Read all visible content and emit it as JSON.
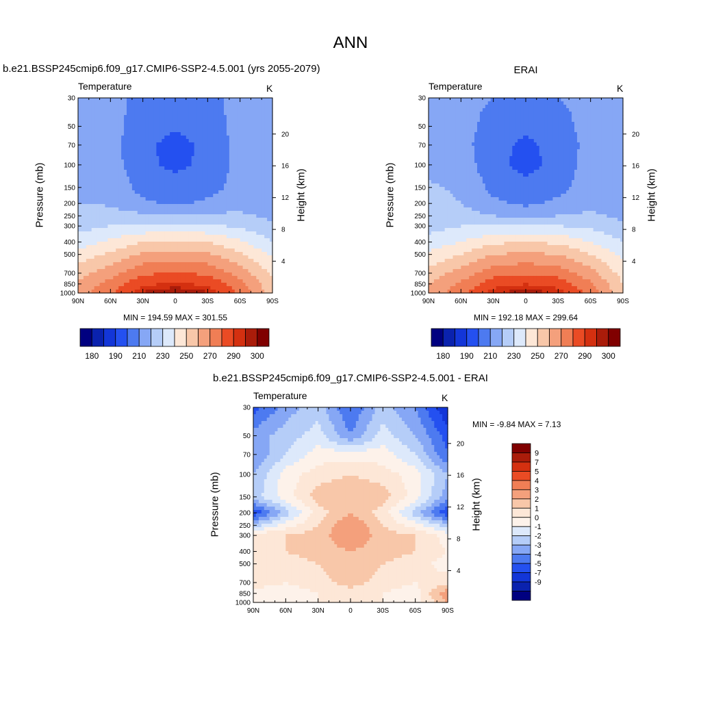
{
  "figure_title": "ANN",
  "colors": {
    "seq": [
      "#000080",
      "#0a22ae",
      "#1336d8",
      "#2450f0",
      "#4d7af0",
      "#86a7f5",
      "#b5cdf8",
      "#dde9fb",
      "#fde7d7",
      "#f8c7a9",
      "#f4a07c",
      "#f07e55",
      "#ea4b24",
      "#d43010",
      "#aa1c0a",
      "#800000"
    ],
    "div": [
      "#000080",
      "#0a22ae",
      "#1336d8",
      "#2450f0",
      "#4d7af0",
      "#86a7f5",
      "#b5cdf8",
      "#dde9fb",
      "#fdf2ea",
      "#fde7d7",
      "#f8c7a9",
      "#f4a07c",
      "#f07e55",
      "#ea4b24",
      "#d43010",
      "#aa1c0a",
      "#800000"
    ]
  },
  "panels": {
    "model": {
      "title": "b.e21.BSSP245cmip6.f09_g17.CMIP6-SSP2-4.5.001 (yrs 2055-2079)",
      "var_label": "Temperature",
      "units": "K",
      "min_max": "MIN = 194.59  MAX = 301.55",
      "ylabel": "Pressure (mb)",
      "ylabel_right": "Height (km)"
    },
    "obs": {
      "title": "ERAI",
      "var_label": "Temperature",
      "units": "K",
      "min_max": "MIN = 192.18  MAX = 299.64",
      "ylabel": "Pressure (mb)",
      "ylabel_right": "Height (km)"
    },
    "diff": {
      "title": "b.e21.BSSP245cmip6.f09_g17.CMIP6-SSP2-4.5.001 - ERAI",
      "var_label": "Temperature",
      "units": "K",
      "min_max": "MIN =  -9.84  MAX =   7.13",
      "ylabel": "Pressure (mb)",
      "ylabel_right": "Height (km)"
    }
  },
  "colorbars": {
    "temperature_labels": [
      "180",
      "190",
      "210",
      "230",
      "250",
      "270",
      "290",
      "300"
    ],
    "difference_labels": [
      "9",
      "7",
      "5",
      "4",
      "3",
      "2",
      "1",
      "0",
      "-1",
      "-2",
      "-3",
      "-4",
      "-5",
      "-7",
      "-9"
    ]
  },
  "chart_data": [
    {
      "type": "heatmap",
      "subtype": "filled-contour",
      "title": "b.e21.BSSP245cmip6.f09_g17.CMIP6-SSP2-4.5.001 (yrs 2055-2079)",
      "variable": "Temperature",
      "units": "K",
      "xlabel": "",
      "ylabel": "Pressure (mb)",
      "ylabel_right": "Height (km)",
      "x_ticks": [
        "90N",
        "60N",
        "30N",
        "0",
        "30S",
        "60S",
        "90S"
      ],
      "y_ticks": [
        30,
        50,
        70,
        100,
        150,
        200,
        250,
        300,
        400,
        500,
        700,
        850,
        1000
      ],
      "y_right_ticks": [
        4,
        8,
        12,
        16,
        20
      ],
      "y_scale": "log",
      "ylim": [
        1000,
        30
      ],
      "x": [
        90,
        60,
        30,
        0,
        -30,
        -60,
        -90
      ],
      "y": [
        30,
        50,
        70,
        100,
        150,
        200,
        250,
        300,
        400,
        500,
        700,
        850,
        1000
      ],
      "values": [
        [
          215,
          212,
          208,
          206,
          208,
          212,
          220
        ],
        [
          218,
          214,
          205,
          201,
          205,
          214,
          218
        ],
        [
          218,
          214,
          202,
          197,
          202,
          214,
          216
        ],
        [
          219,
          215,
          202,
          198,
          202,
          214,
          214
        ],
        [
          219,
          218,
          206,
          204,
          206,
          214,
          213
        ],
        [
          220,
          219,
          212,
          208,
          212,
          216,
          214
        ],
        [
          222,
          224,
          222,
          220,
          222,
          222,
          218
        ],
        [
          226,
          230,
          232,
          232,
          232,
          228,
          222
        ],
        [
          235,
          242,
          250,
          251,
          250,
          242,
          230
        ],
        [
          244,
          252,
          262,
          264,
          262,
          252,
          238
        ],
        [
          256,
          266,
          278,
          281,
          278,
          266,
          248
        ],
        [
          262,
          274,
          288,
          292,
          288,
          274,
          252
        ],
        [
          266,
          278,
          296,
          301,
          296,
          278,
          255
        ]
      ],
      "levels": [
        180,
        185,
        190,
        200,
        210,
        220,
        230,
        240,
        250,
        260,
        270,
        280,
        290,
        295,
        300
      ],
      "min": 194.59,
      "max": 301.55
    },
    {
      "type": "heatmap",
      "subtype": "filled-contour",
      "title": "ERAI",
      "variable": "Temperature",
      "units": "K",
      "xlabel": "",
      "ylabel": "Pressure (mb)",
      "ylabel_right": "Height (km)",
      "x_ticks": [
        "90N",
        "60N",
        "30N",
        "0",
        "30S",
        "60S",
        "90S"
      ],
      "y_ticks": [
        30,
        50,
        70,
        100,
        150,
        200,
        250,
        300,
        400,
        500,
        700,
        850,
        1000
      ],
      "y_right_ticks": [
        4,
        8,
        12,
        16,
        20
      ],
      "y_scale": "log",
      "ylim": [
        1000,
        30
      ],
      "x": [
        90,
        60,
        30,
        0,
        -30,
        -60,
        -90
      ],
      "y": [
        30,
        50,
        70,
        100,
        150,
        200,
        250,
        300,
        400,
        500,
        700,
        850,
        1000
      ],
      "values": [
        [
          214,
          213,
          210,
          208,
          210,
          213,
          219
        ],
        [
          216,
          214,
          206,
          202,
          206,
          214,
          217
        ],
        [
          217,
          214,
          203,
          198,
          203,
          214,
          216
        ],
        [
          218,
          216,
          203,
          197,
          203,
          215,
          214
        ],
        [
          221,
          219,
          207,
          203,
          207,
          215,
          213
        ],
        [
          222,
          220,
          212,
          208,
          212,
          217,
          214
        ],
        [
          223,
          224,
          220,
          218,
          220,
          222,
          218
        ],
        [
          226,
          230,
          230,
          230,
          230,
          228,
          222
        ],
        [
          234,
          240,
          248,
          250,
          248,
          240,
          230
        ],
        [
          242,
          250,
          260,
          262,
          260,
          250,
          238
        ],
        [
          254,
          264,
          276,
          279,
          276,
          264,
          246
        ],
        [
          260,
          272,
          286,
          290,
          286,
          272,
          250
        ],
        [
          264,
          276,
          294,
          299,
          294,
          276,
          252
        ]
      ],
      "levels": [
        180,
        185,
        190,
        200,
        210,
        220,
        230,
        240,
        250,
        260,
        270,
        280,
        290,
        295,
        300
      ],
      "min": 192.18,
      "max": 299.64
    },
    {
      "type": "heatmap",
      "subtype": "filled-contour",
      "title": "b.e21.BSSP245cmip6.f09_g17.CMIP6-SSP2-4.5.001 - ERAI",
      "variable": "Temperature",
      "units": "K",
      "xlabel": "",
      "ylabel": "Pressure (mb)",
      "ylabel_right": "Height (km)",
      "x_ticks": [
        "90N",
        "60N",
        "30N",
        "0",
        "30S",
        "60S",
        "90S"
      ],
      "y_ticks": [
        30,
        50,
        70,
        100,
        150,
        200,
        250,
        300,
        400,
        500,
        700,
        850,
        1000
      ],
      "y_right_ticks": [
        4,
        8,
        12,
        16,
        20
      ],
      "y_scale": "log",
      "ylim": [
        1000,
        30
      ],
      "x": [
        90,
        60,
        30,
        0,
        -30,
        -60,
        -90
      ],
      "y": [
        30,
        50,
        70,
        100,
        150,
        200,
        250,
        300,
        400,
        500,
        700,
        850,
        1000
      ],
      "values": [
        [
          -4.5,
          -2.5,
          -1.5,
          -4.0,
          -1.5,
          -3.0,
          -6.0
        ],
        [
          -2.5,
          -1.5,
          -0.5,
          -3.0,
          -0.5,
          -2.0,
          -4.5
        ],
        [
          -3.0,
          -1.0,
          0.5,
          0.5,
          0.5,
          -1.0,
          -4.0
        ],
        [
          -2.0,
          0.5,
          1.5,
          2.0,
          1.5,
          0.5,
          -2.0
        ],
        [
          -1.5,
          0.5,
          2.5,
          3.0,
          2.5,
          0.5,
          -2.5
        ],
        [
          -5.0,
          -1.5,
          1.5,
          3.0,
          1.5,
          -1.5,
          -5.0
        ],
        [
          -1.5,
          0.5,
          2.0,
          4.0,
          2.0,
          0.5,
          -1.5
        ],
        [
          1.5,
          2.0,
          2.5,
          4.0,
          2.5,
          2.0,
          0.5
        ],
        [
          2.0,
          2.0,
          2.5,
          3.0,
          2.5,
          2.0,
          1.0
        ],
        [
          2.0,
          1.5,
          2.0,
          3.0,
          2.0,
          1.5,
          0.5
        ],
        [
          1.5,
          1.0,
          1.5,
          2.5,
          1.5,
          1.0,
          1.5
        ],
        [
          0.5,
          0.5,
          1.0,
          1.5,
          1.0,
          0.5,
          4.0
        ],
        [
          0.5,
          0.5,
          1.0,
          1.5,
          1.0,
          0.5,
          3.0
        ]
      ],
      "levels": [
        -9,
        -7,
        -5,
        -4,
        -3,
        -2,
        -1,
        0,
        1,
        2,
        3,
        4,
        5,
        7,
        9
      ],
      "min": -9.84,
      "max": 7.13
    }
  ]
}
